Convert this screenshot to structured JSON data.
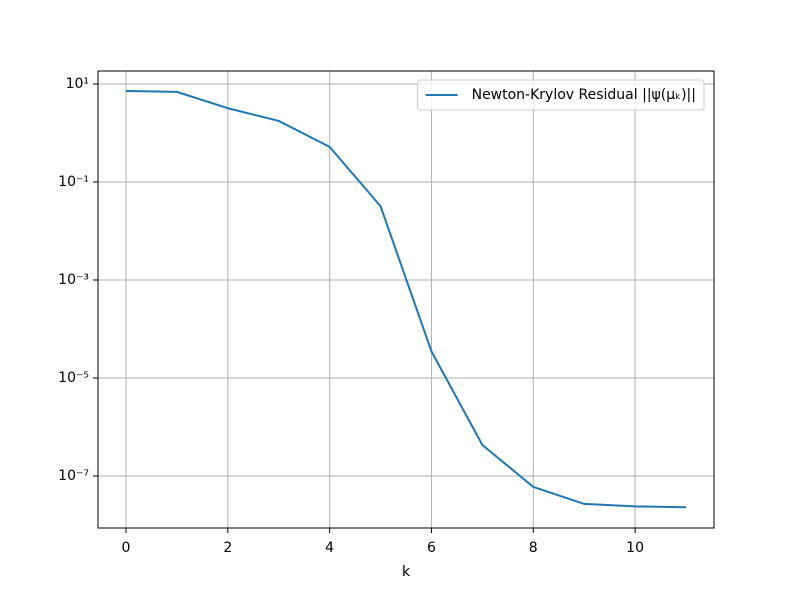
{
  "chart_data": {
    "type": "line",
    "xlabel": "k",
    "x": [
      0,
      1,
      2,
      3,
      4,
      5,
      6,
      7,
      8,
      9,
      10,
      11
    ],
    "series": [
      {
        "name": "Newton-Krylov Residual ||ψ(μₖ)||",
        "color": "#1f77b4",
        "values": [
          7.2,
          6.9,
          3.2,
          1.76,
          0.52,
          0.032,
          3.5e-05,
          4.3e-07,
          6e-08,
          2.7e-08,
          2.4e-08,
          2.3e-08
        ]
      }
    ],
    "xlim": [
      -0.55,
      11.55
    ],
    "xticks": [
      0,
      2,
      4,
      6,
      8,
      10
    ],
    "ylim": [
      8.7e-09,
      18.4
    ],
    "log_y": true,
    "yticks": [
      {
        "value": 10,
        "label": "10¹"
      },
      {
        "value": 0.1,
        "label": "10⁻¹"
      },
      {
        "value": 0.001,
        "label": "10⁻³"
      },
      {
        "value": 1e-05,
        "label": "10⁻⁵"
      },
      {
        "value": 1e-07,
        "label": "10⁻⁷"
      }
    ],
    "grid": true,
    "legend": "upper right"
  }
}
